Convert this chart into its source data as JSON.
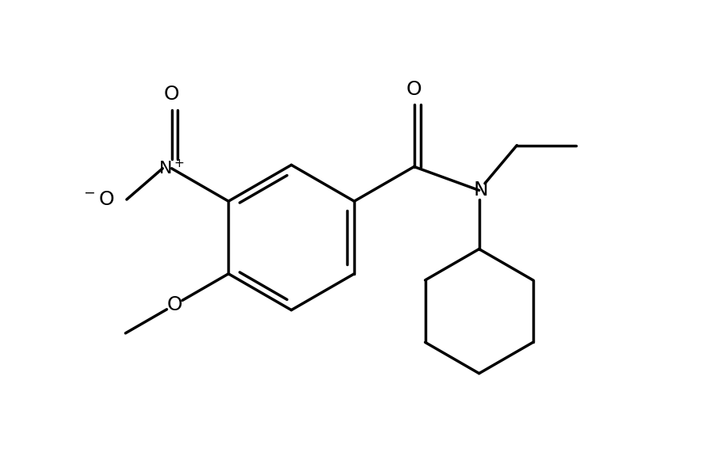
{
  "background_color": "#ffffff",
  "line_color": "#000000",
  "line_width": 2.5,
  "font_size": 16,
  "figsize": [
    9.1,
    6.0
  ],
  "dpi": 100,
  "xlim": [
    0,
    10
  ],
  "ylim": [
    0,
    6.6
  ]
}
